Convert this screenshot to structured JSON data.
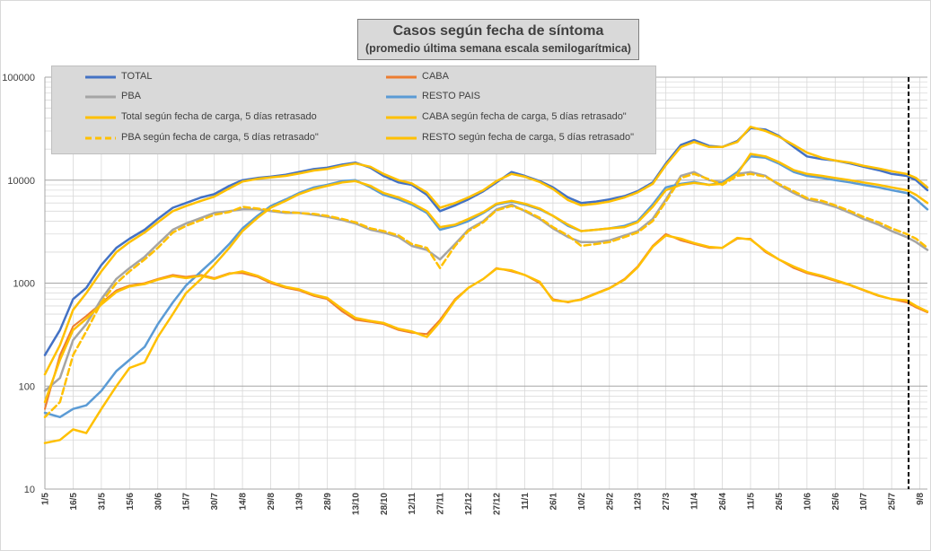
{
  "chart_data": {
    "type": "line",
    "title": "Casos según fecha de síntoma",
    "subtitle": "(promedio última semana escala semilogarítmica)",
    "yscale": "log",
    "ylim": [
      10,
      100000
    ],
    "y_ticks": [
      "100000",
      "10000",
      "1000",
      "100",
      "10"
    ],
    "y_tick_values": [
      100000,
      10000,
      1000,
      100,
      10
    ],
    "x_ticks": [
      "1/5",
      "16/5",
      "31/5",
      "15/6",
      "30/6",
      "15/7",
      "30/7",
      "14/8",
      "29/8",
      "13/9",
      "28/9",
      "13/10",
      "28/10",
      "12/11",
      "27/11",
      "12/12",
      "27/12",
      "11/1",
      "26/1",
      "10/2",
      "25/2",
      "12/3",
      "27/3",
      "11/4",
      "26/4",
      "11/5",
      "26/5",
      "10/6",
      "25/6",
      "10/7",
      "25/7",
      "9/8"
    ],
    "x_tick_day": [
      0,
      15,
      30,
      45,
      60,
      75,
      90,
      105,
      120,
      135,
      150,
      165,
      180,
      195,
      210,
      225,
      240,
      255,
      270,
      285,
      300,
      315,
      330,
      345,
      360,
      375,
      390,
      405,
      420,
      435,
      450,
      465
    ],
    "x_last_day": 469,
    "vline_day": 459,
    "grid": true,
    "legend": {
      "position": "top"
    },
    "series": [
      {
        "name": "TOTAL",
        "color": "#4472c4",
        "dash": false,
        "width": 2.5,
        "x": [
          0,
          8,
          15,
          22,
          30,
          38,
          45,
          53,
          60,
          68,
          75,
          83,
          90,
          98,
          105,
          113,
          120,
          128,
          135,
          143,
          150,
          158,
          165,
          173,
          180,
          188,
          195,
          203,
          210,
          218,
          225,
          233,
          240,
          248,
          255,
          263,
          270,
          278,
          285,
          293,
          300,
          308,
          315,
          323,
          330,
          338,
          345,
          353,
          360,
          368,
          375,
          383,
          390,
          398,
          405,
          413,
          420,
          428,
          435,
          443,
          450,
          458,
          463,
          469
        ],
        "y": [
          200,
          350,
          700,
          900,
          1500,
          2200,
          2700,
          3300,
          4200,
          5400,
          6000,
          6800,
          7300,
          8800,
          10000,
          10500,
          10800,
          11300,
          12000,
          12800,
          13200,
          14200,
          14800,
          13200,
          11000,
          9500,
          9000,
          7200,
          5000,
          5700,
          6500,
          7800,
          9500,
          12000,
          11000,
          9800,
          8500,
          6800,
          6000,
          6200,
          6500,
          7000,
          7800,
          9500,
          14500,
          22000,
          24500,
          21500,
          21000,
          24000,
          32000,
          31000,
          27000,
          21000,
          17000,
          16000,
          15500,
          14500,
          13500,
          12500,
          11500,
          11000,
          10000,
          8000
        ]
      },
      {
        "name": "CABA",
        "color": "#ed7d31",
        "dash": false,
        "width": 2,
        "x": [
          0,
          8,
          15,
          22,
          30,
          38,
          45,
          53,
          60,
          68,
          75,
          83,
          90,
          98,
          105,
          113,
          120,
          128,
          135,
          143,
          150,
          158,
          165,
          173,
          180,
          188,
          195,
          203,
          210,
          218,
          225,
          233,
          240,
          248,
          255,
          263,
          270,
          278,
          285,
          293,
          300,
          308,
          315,
          323,
          330,
          338,
          345,
          353,
          360,
          368,
          375,
          383,
          390,
          398,
          405,
          413,
          420,
          428,
          435,
          443,
          450,
          458,
          463,
          469
        ],
        "y": [
          60,
          200,
          380,
          480,
          640,
          850,
          950,
          1000,
          1100,
          1200,
          1150,
          1200,
          1120,
          1250,
          1250,
          1150,
          1000,
          900,
          850,
          750,
          700,
          530,
          440,
          420,
          400,
          350,
          330,
          320,
          440,
          700,
          900,
          1100,
          1400,
          1300,
          1200,
          1000,
          700,
          650,
          700,
          800,
          900,
          1100,
          1450,
          2300,
          3000,
          2600,
          2400,
          2200,
          2200,
          2700,
          2700,
          2000,
          1700,
          1400,
          1250,
          1150,
          1050,
          950,
          850,
          750,
          700,
          650,
          580,
          520
        ]
      },
      {
        "name": "PBA",
        "color": "#a5a5a5",
        "dash": false,
        "width": 2.5,
        "x": [
          0,
          8,
          15,
          22,
          30,
          38,
          45,
          53,
          60,
          68,
          75,
          83,
          90,
          98,
          105,
          113,
          120,
          128,
          135,
          143,
          150,
          158,
          165,
          173,
          180,
          188,
          195,
          203,
          210,
          218,
          225,
          233,
          240,
          248,
          255,
          263,
          270,
          278,
          285,
          293,
          300,
          308,
          315,
          323,
          330,
          338,
          345,
          353,
          360,
          368,
          375,
          383,
          390,
          398,
          405,
          413,
          420,
          428,
          435,
          443,
          450,
          458,
          463,
          469
        ],
        "y": [
          90,
          120,
          280,
          400,
          700,
          1100,
          1400,
          1800,
          2400,
          3300,
          3800,
          4300,
          4800,
          5000,
          5200,
          5200,
          5000,
          4800,
          4800,
          4600,
          4400,
          4100,
          3800,
          3300,
          3100,
          2800,
          2300,
          2100,
          1700,
          2400,
          3300,
          4000,
          5200,
          5800,
          5000,
          4200,
          3400,
          2800,
          2500,
          2500,
          2600,
          2900,
          3200,
          4200,
          6500,
          11000,
          12000,
          10000,
          9500,
          11500,
          12000,
          11000,
          9000,
          7500,
          6500,
          6000,
          5500,
          4800,
          4200,
          3700,
          3200,
          2800,
          2500,
          2100
        ]
      },
      {
        "name": "RESTO PAIS",
        "color": "#5b9bd5",
        "dash": false,
        "width": 2.5,
        "x": [
          0,
          8,
          15,
          22,
          30,
          38,
          45,
          53,
          60,
          68,
          75,
          83,
          90,
          98,
          105,
          113,
          120,
          128,
          135,
          143,
          150,
          158,
          165,
          173,
          180,
          188,
          195,
          203,
          210,
          218,
          225,
          233,
          240,
          248,
          255,
          263,
          270,
          278,
          285,
          293,
          300,
          308,
          315,
          323,
          330,
          338,
          345,
          353,
          360,
          368,
          375,
          383,
          390,
          398,
          405,
          413,
          420,
          428,
          435,
          443,
          450,
          458,
          463,
          469
        ],
        "y": [
          55,
          50,
          60,
          65,
          90,
          140,
          180,
          240,
          400,
          650,
          950,
          1300,
          1700,
          2400,
          3400,
          4500,
          5600,
          6500,
          7500,
          8500,
          9000,
          9800,
          10000,
          8500,
          7200,
          6500,
          5800,
          4800,
          3300,
          3600,
          4000,
          4800,
          5800,
          6200,
          5800,
          5200,
          4500,
          3600,
          3200,
          3300,
          3400,
          3600,
          4000,
          5800,
          8500,
          9200,
          9600,
          9000,
          9500,
          12000,
          17000,
          16500,
          14500,
          12000,
          11000,
          10500,
          10000,
          9500,
          9000,
          8500,
          8000,
          7500,
          6500,
          5200
        ]
      },
      {
        "name": "Total según fecha de carga, 5 días retrasado",
        "color": "#ffc000",
        "dash": false,
        "width": 2.5,
        "x": [
          0,
          8,
          15,
          22,
          30,
          38,
          45,
          53,
          60,
          68,
          75,
          83,
          90,
          98,
          105,
          113,
          120,
          128,
          135,
          143,
          150,
          158,
          165,
          173,
          180,
          188,
          195,
          203,
          210,
          218,
          225,
          233,
          240,
          248,
          255,
          263,
          270,
          278,
          285,
          293,
          300,
          308,
          315,
          323,
          330,
          338,
          345,
          353,
          360,
          368,
          375,
          383,
          390,
          398,
          405,
          413,
          420,
          428,
          435,
          443,
          450,
          458,
          463,
          469
        ],
        "y": [
          130,
          250,
          550,
          800,
          1300,
          2000,
          2500,
          3100,
          3900,
          5000,
          5600,
          6300,
          6900,
          8300,
          9700,
          10300,
          10600,
          11000,
          11600,
          12400,
          12800,
          13800,
          14500,
          13500,
          11500,
          10000,
          9300,
          7600,
          5400,
          6000,
          6800,
          8000,
          9800,
          11500,
          10800,
          9600,
          8200,
          6400,
          5700,
          5900,
          6200,
          6800,
          7600,
          9200,
          14000,
          21000,
          23500,
          21000,
          21000,
          23500,
          33000,
          30000,
          26500,
          22000,
          18500,
          16500,
          15500,
          14800,
          13800,
          13000,
          12200,
          11500,
          10500,
          8500
        ]
      },
      {
        "name": "CABA según fecha de carga, 5 días retrasado\"",
        "color": "#ffc000",
        "dash": false,
        "width": 2.5,
        "x": [
          0,
          8,
          15,
          22,
          30,
          38,
          45,
          53,
          60,
          68,
          75,
          83,
          90,
          98,
          105,
          113,
          120,
          128,
          135,
          143,
          150,
          158,
          165,
          173,
          180,
          188,
          195,
          203,
          210,
          218,
          225,
          233,
          240,
          248,
          255,
          263,
          270,
          278,
          285,
          293,
          300,
          308,
          315,
          323,
          330,
          338,
          345,
          353,
          360,
          368,
          375,
          383,
          390,
          398,
          405,
          413,
          420,
          428,
          435,
          443,
          450,
          458,
          463,
          469
        ],
        "y": [
          70,
          180,
          350,
          450,
          620,
          820,
          930,
          980,
          1080,
          1170,
          1120,
          1180,
          1100,
          1230,
          1300,
          1180,
          1030,
          920,
          870,
          770,
          720,
          560,
          460,
          430,
          410,
          360,
          340,
          300,
          420,
          680,
          900,
          1100,
          1380,
          1330,
          1200,
          1030,
          680,
          660,
          690,
          790,
          890,
          1080,
          1420,
          2250,
          2900,
          2700,
          2450,
          2250,
          2200,
          2750,
          2650,
          2050,
          1700,
          1450,
          1280,
          1180,
          1070,
          960,
          860,
          760,
          700,
          680,
          600,
          530
        ]
      },
      {
        "name": "PBA según fecha de carga, 5 días retrasado\"",
        "color": "#ffc000",
        "dash": true,
        "width": 2.5,
        "x": [
          0,
          8,
          15,
          22,
          30,
          38,
          45,
          53,
          60,
          68,
          75,
          83,
          90,
          98,
          105,
          113,
          120,
          128,
          135,
          143,
          150,
          158,
          165,
          173,
          180,
          188,
          195,
          203,
          210,
          218,
          225,
          233,
          240,
          248,
          255,
          263,
          270,
          278,
          285,
          293,
          300,
          308,
          315,
          323,
          330,
          338,
          345,
          353,
          360,
          368,
          375,
          383,
          390,
          398,
          405,
          413,
          420,
          428,
          435,
          443,
          450,
          458,
          463,
          469
        ],
        "y": [
          50,
          70,
          200,
          340,
          650,
          1000,
          1300,
          1700,
          2200,
          3100,
          3600,
          4100,
          4600,
          4900,
          5500,
          5300,
          5100,
          4900,
          4800,
          4700,
          4500,
          4200,
          3900,
          3400,
          3200,
          2900,
          2400,
          2200,
          1400,
          2300,
          3200,
          3900,
          5100,
          5600,
          5100,
          4300,
          3500,
          2900,
          2300,
          2400,
          2500,
          2800,
          3100,
          4000,
          6200,
          10500,
          11500,
          10200,
          9000,
          11000,
          11500,
          10800,
          9200,
          7800,
          6700,
          6300,
          5700,
          5000,
          4400,
          3900,
          3400,
          3000,
          2700,
          2200
        ]
      },
      {
        "name": "RESTO según fecha de carga, 5 días retrasado\"",
        "color": "#ffc000",
        "dash": false,
        "width": 2.5,
        "x": [
          0,
          8,
          15,
          22,
          30,
          38,
          45,
          53,
          60,
          68,
          75,
          83,
          90,
          98,
          105,
          113,
          120,
          128,
          135,
          143,
          150,
          158,
          165,
          173,
          180,
          188,
          195,
          203,
          210,
          218,
          225,
          233,
          240,
          248,
          255,
          263,
          270,
          278,
          285,
          293,
          300,
          308,
          315,
          323,
          330,
          338,
          345,
          353,
          360,
          368,
          375,
          383,
          390,
          398,
          405,
          413,
          420,
          428,
          435,
          443,
          450,
          458,
          463,
          469
        ],
        "y": [
          28,
          30,
          38,
          35,
          60,
          100,
          150,
          170,
          300,
          500,
          800,
          1100,
          1500,
          2200,
          3200,
          4300,
          5400,
          6300,
          7300,
          8200,
          8800,
          9500,
          9800,
          8800,
          7500,
          6800,
          6000,
          5000,
          3500,
          3700,
          4200,
          4900,
          5900,
          6300,
          5900,
          5300,
          4500,
          3700,
          3200,
          3300,
          3400,
          3500,
          3900,
          5500,
          8000,
          9000,
          9400,
          9000,
          9200,
          11500,
          18000,
          17000,
          15000,
          12500,
          11500,
          11000,
          10500,
          10000,
          9500,
          9000,
          8500,
          8000,
          7200,
          6000
        ]
      }
    ]
  }
}
